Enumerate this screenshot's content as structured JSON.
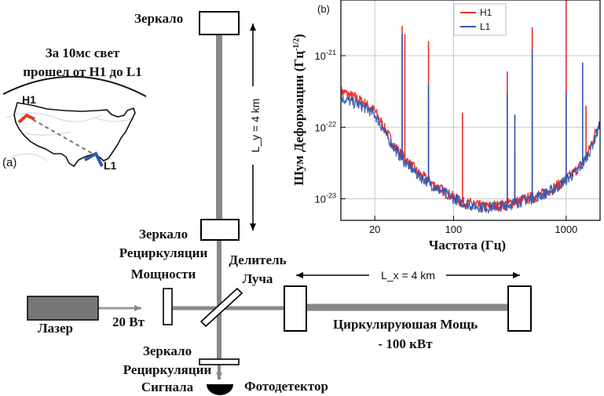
{
  "panel_a": {
    "label": "(a)",
    "caption_line1": "За 10мс свет",
    "caption_line2": "прошел от H1 до L1",
    "site_h1": "H1",
    "site_l1": "L1",
    "colors": {
      "h1": "#e8392e",
      "l1": "#2f56b0",
      "map": "#111111",
      "dash": "#777777"
    }
  },
  "interferometer": {
    "mirror_y": "Зеркало",
    "ly_arm": "L_y = 4 km",
    "prm_line1": "Зеркало",
    "prm_line2": "Рециркуляции",
    "prm_line3": "Мощности",
    "bs_line1": "Делитель",
    "bs_line2": "Луча",
    "lx_arm": "L_x = 4 km",
    "laser": "Лазер",
    "input_power": "20 Вт",
    "circ_line1": "Циркулируюшая Мощь",
    "circ_line2": "- 100 кВт",
    "srm_line1": "Зеркало",
    "srm_line2": "Рециркуляции",
    "srm_line3": "Сигнала",
    "photodetector": "Фотодетектор",
    "colors": {
      "beam": "#888888",
      "laser_box": "#777777",
      "outline": "#000000"
    }
  },
  "chart_data": {
    "type": "line",
    "panel_label": "(b)",
    "title": "",
    "xlabel": "Частота (Гц)",
    "ylabel": "Шум Деформации (Гц^-1/2)",
    "xscale": "log",
    "yscale": "log",
    "xlim": [
      10,
      2000
    ],
    "ylim": [
      5e-24,
      6e-21
    ],
    "xticks": [
      {
        "value": 20,
        "label": "20"
      },
      {
        "value": 100,
        "label": "100"
      },
      {
        "value": 1000,
        "label": "1000"
      }
    ],
    "yticks": [
      {
        "value": 1e-23,
        "label": "10^-23"
      },
      {
        "value": 1e-22,
        "label": "10^-22"
      },
      {
        "value": 1e-21,
        "label": "10^-21"
      }
    ],
    "grid": true,
    "legend": "top",
    "series": [
      {
        "name": "H1",
        "color": "#e8302a",
        "x": [
          10,
          12,
          14,
          16,
          18,
          20,
          25,
          30,
          35,
          40,
          45,
          50,
          60,
          70,
          80,
          100,
          120,
          150,
          180,
          200,
          250,
          300,
          350,
          400,
          500,
          600,
          700,
          800,
          900,
          1000,
          1200,
          1400,
          1600,
          1800,
          2000
        ],
        "y": [
          3.2e-22,
          2.8e-22,
          2.5e-22,
          2.2e-22,
          1.9e-22,
          1.7e-22,
          9e-23,
          5.5e-23,
          4e-23,
          3.2e-23,
          2.6e-23,
          2.2e-23,
          1.8e-23,
          1.5e-23,
          1.3e-23,
          1.05e-23,
          9e-24,
          8.2e-24,
          7.8e-24,
          7.8e-24,
          8e-24,
          8.5e-24,
          9e-24,
          9.5e-24,
          1.05e-23,
          1.15e-23,
          1.3e-23,
          1.45e-23,
          1.65e-23,
          1.9e-23,
          2.4e-23,
          3.2e-23,
          4.8e-23,
          8e-23,
          1.3e-22
        ],
        "lines": [
          {
            "x": 35,
            "peak": 2.6e-21
          },
          {
            "x": 37,
            "peak": 2e-21
          },
          {
            "x": 60,
            "peak": 1.6e-21
          },
          {
            "x": 120,
            "peak": 1.6e-22
          },
          {
            "x": 300,
            "peak": 6e-22
          },
          {
            "x": 350,
            "peak": 4.5e-23
          },
          {
            "x": 500,
            "peak": 2.5e-21
          },
          {
            "x": 1000,
            "peak": 6e-21
          },
          {
            "x": 1500,
            "peak": 2e-22
          }
        ]
      },
      {
        "name": "L1",
        "color": "#2f56b0",
        "x": [
          10,
          12,
          14,
          16,
          18,
          20,
          25,
          30,
          35,
          40,
          45,
          50,
          60,
          70,
          80,
          100,
          120,
          150,
          180,
          200,
          250,
          300,
          350,
          400,
          500,
          600,
          700,
          800,
          900,
          1000,
          1200,
          1400,
          1600,
          1800,
          2000
        ],
        "y": [
          2.6e-22,
          2.3e-22,
          2.1e-22,
          1.9e-22,
          1.7e-22,
          1.5e-22,
          8e-23,
          5e-23,
          3.6e-23,
          2.9e-23,
          2.4e-23,
          2.05e-23,
          1.7e-23,
          1.45e-23,
          1.25e-23,
          1.02e-23,
          8.8e-24,
          8e-24,
          7.6e-24,
          7.6e-24,
          7.8e-24,
          8.2e-24,
          8.8e-24,
          9.3e-24,
          1.02e-23,
          1.12e-23,
          1.25e-23,
          1.4e-23,
          1.6e-23,
          1.85e-23,
          2.3e-23,
          3e-23,
          4.5e-23,
          7e-23,
          1.1e-22
        ],
        "lines": [
          {
            "x": 35,
            "peak": 2e-21
          },
          {
            "x": 60,
            "peak": 4e-22
          },
          {
            "x": 300,
            "peak": 3e-22
          },
          {
            "x": 350,
            "peak": 1.5e-22
          },
          {
            "x": 500,
            "peak": 1.2e-21
          },
          {
            "x": 1000,
            "peak": 3e-22
          },
          {
            "x": 1400,
            "peak": 8e-22
          }
        ]
      }
    ]
  }
}
